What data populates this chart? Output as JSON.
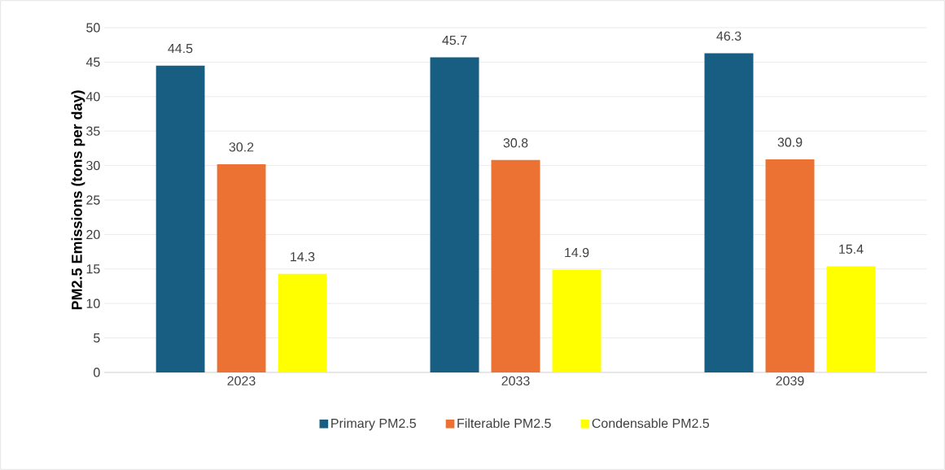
{
  "chart_data": {
    "type": "bar",
    "ylabel": "PM2.5 Emissions (tons per day)",
    "categories": [
      "2023",
      "2033",
      "2039"
    ],
    "series": [
      {
        "name": "Primary PM2.5",
        "color": "#175e82",
        "values": [
          44.5,
          45.7,
          46.3
        ]
      },
      {
        "name": "Filterable PM2.5",
        "color": "#ec7233",
        "values": [
          30.2,
          30.8,
          30.9
        ]
      },
      {
        "name": "Condensable PM2.5",
        "color": "#ffff00",
        "values": [
          14.3,
          14.9,
          15.4
        ]
      }
    ],
    "ylim": [
      0,
      50
    ],
    "yticks": [
      0,
      5,
      10,
      15,
      20,
      25,
      30,
      35,
      40,
      45,
      50
    ],
    "grid": "y",
    "legend": "bottom",
    "data_labels": true
  }
}
